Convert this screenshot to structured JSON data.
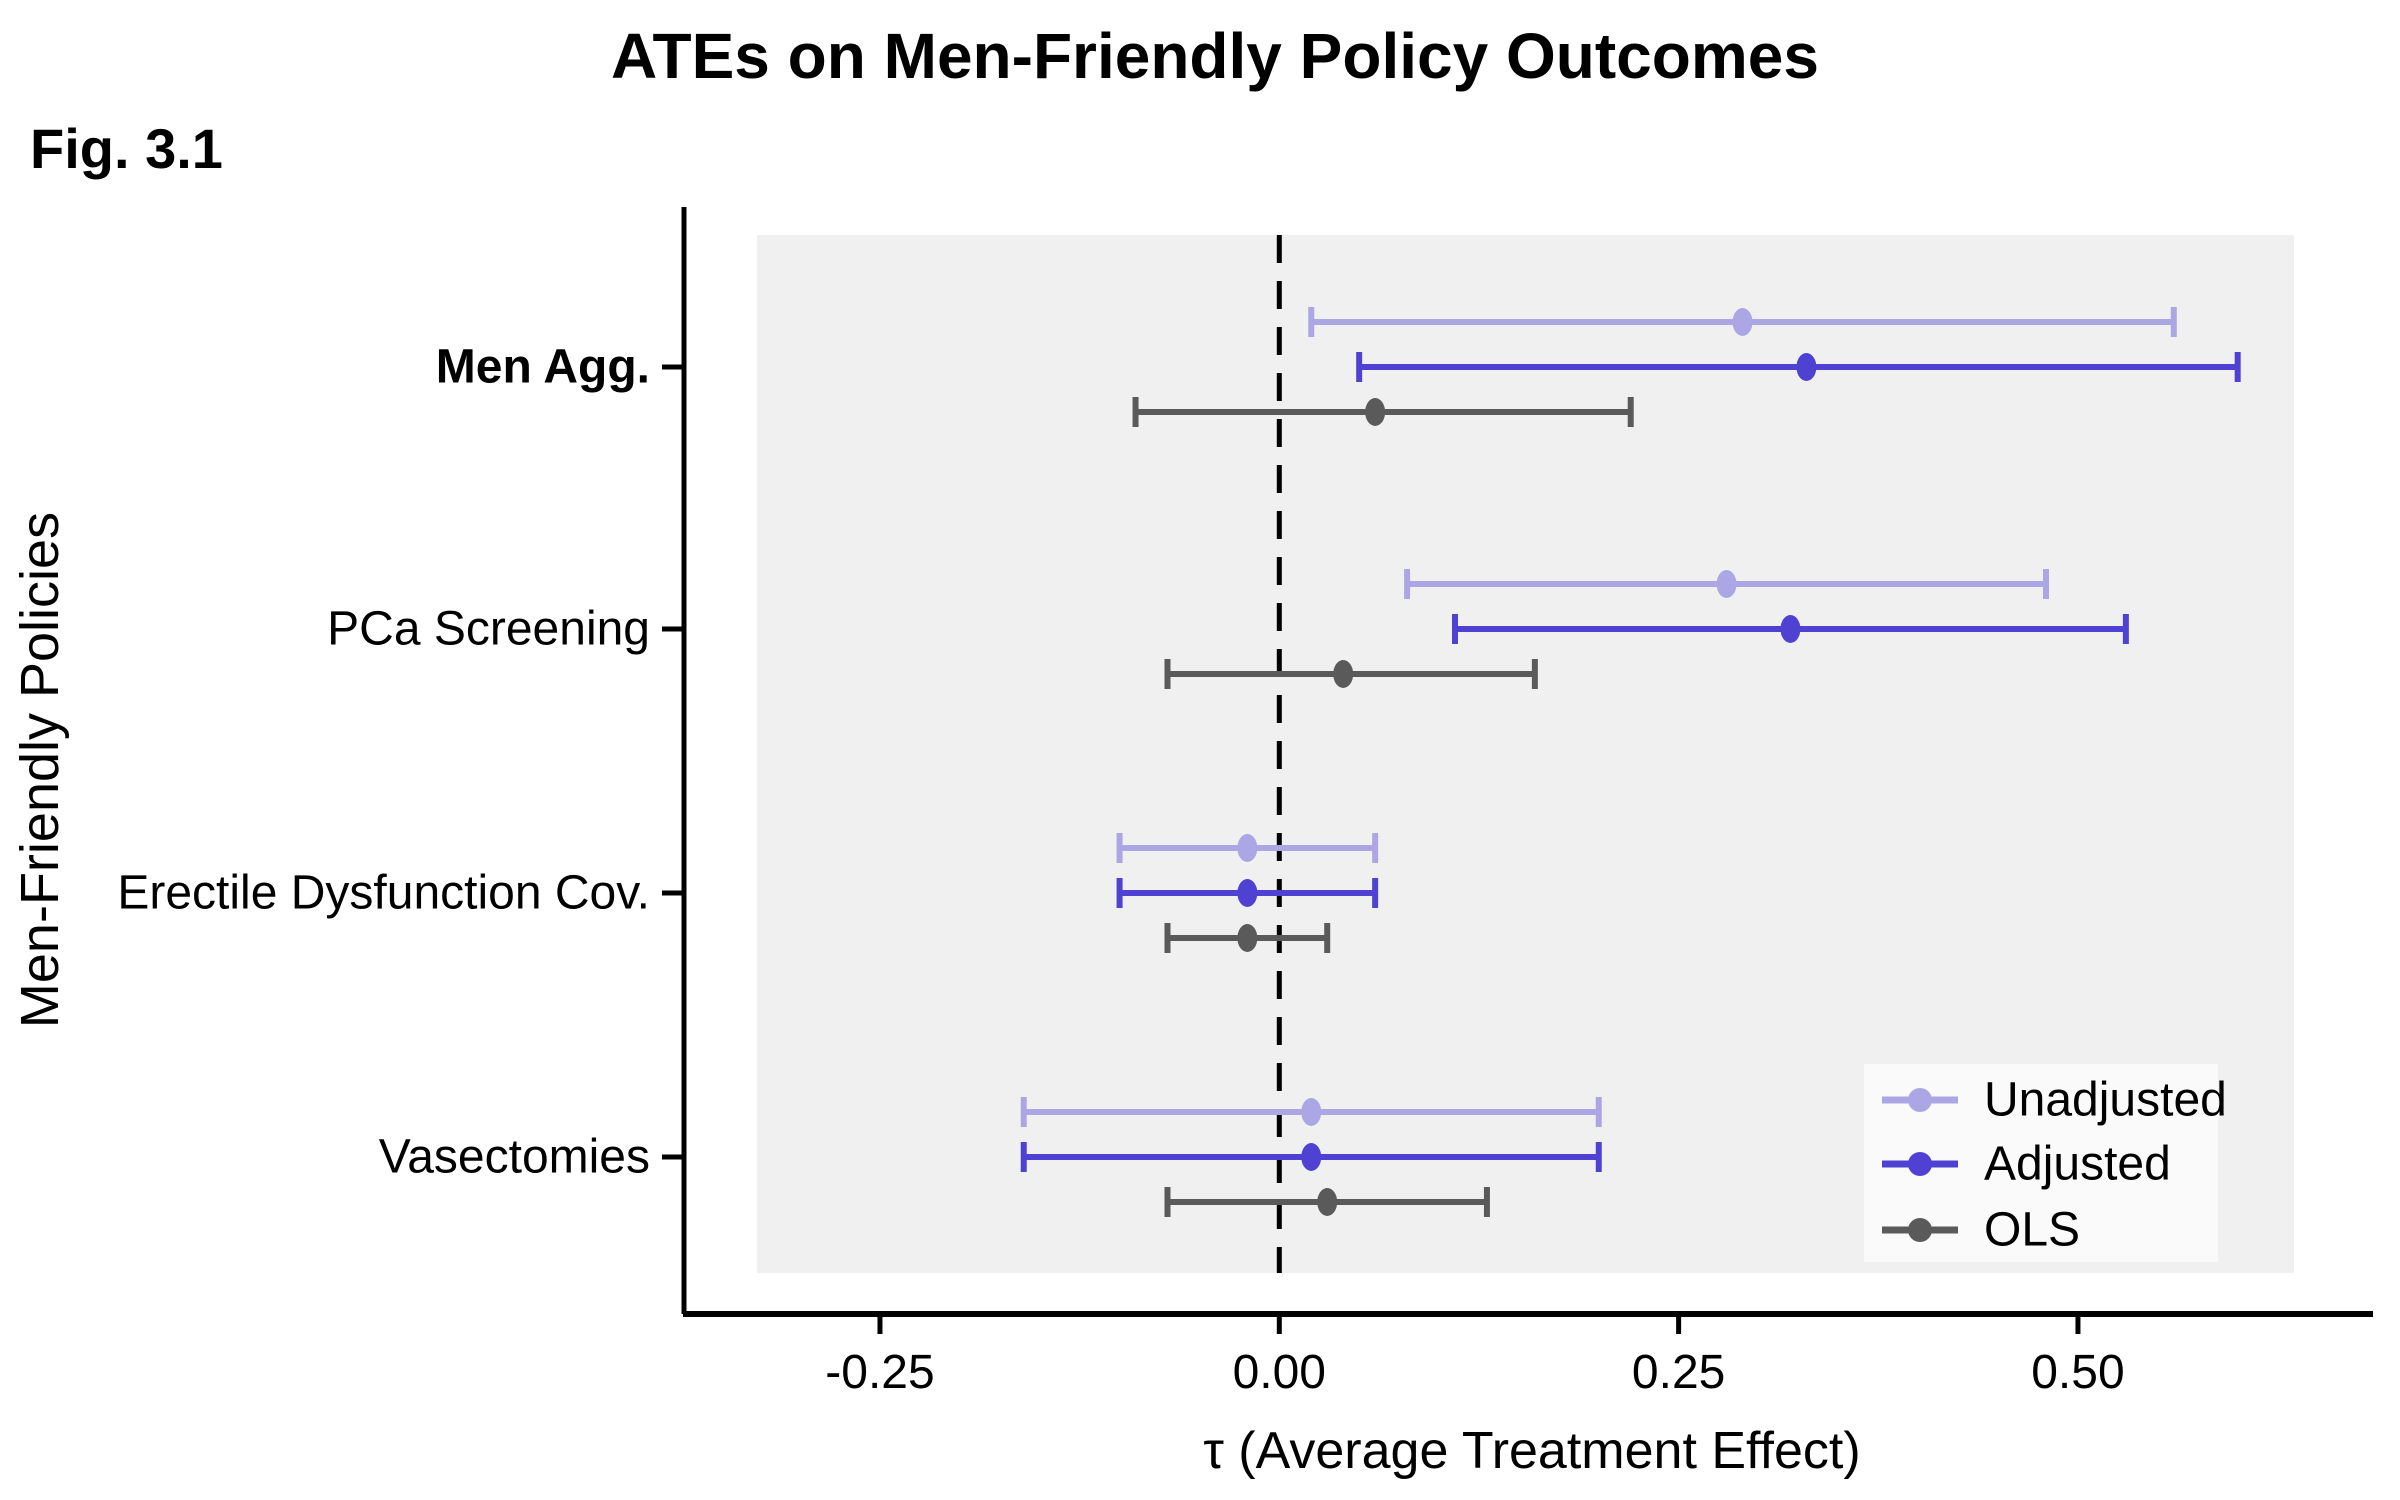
{
  "chart_data": {
    "type": "scatter",
    "subtype": "forest-errorbar",
    "title": "ATEs on Men-Friendly Policy Outcomes",
    "fig_label": "Fig. 3.1",
    "xlabel": "τ (Average Treatment Effect)",
    "ylabel": "Men-Friendly Policies",
    "x_ticks": [
      -0.25,
      0.0,
      0.25,
      0.5
    ],
    "x_tick_labels": [
      "-0.25",
      "0.00",
      "0.25",
      "0.50"
    ],
    "xlim": [
      -0.37,
      0.68
    ],
    "zero_line": 0.0,
    "grid": false,
    "legend_position": "bottom-right",
    "categories": [
      {
        "label": "Men Agg.",
        "bold": true
      },
      {
        "label": "PCa Screening",
        "bold": false
      },
      {
        "label": "Erectile Dysfunction Cov.",
        "bold": false
      },
      {
        "label": "Vasectomies",
        "bold": false
      }
    ],
    "series": [
      {
        "name": "Unadjusted",
        "color": "#ada6e4",
        "estimates": [
          0.29,
          0.28,
          -0.02,
          0.02
        ],
        "ci_low": [
          0.02,
          0.08,
          -0.1,
          -0.16
        ],
        "ci_high": [
          0.56,
          0.48,
          0.06,
          0.2
        ]
      },
      {
        "name": "Adjusted",
        "color": "#4f42d2",
        "estimates": [
          0.33,
          0.32,
          -0.02,
          0.02
        ],
        "ci_low": [
          0.05,
          0.11,
          -0.1,
          -0.16
        ],
        "ci_high": [
          0.6,
          0.53,
          0.06,
          0.2
        ]
      },
      {
        "name": "OLS",
        "color": "#5a5a5a",
        "estimates": [
          0.06,
          0.04,
          -0.02,
          0.03
        ],
        "ci_low": [
          -0.09,
          -0.07,
          -0.07,
          -0.07
        ],
        "ci_high": [
          0.22,
          0.16,
          0.03,
          0.13
        ]
      }
    ],
    "colors": {
      "panel_bg": "#f0f0f0",
      "legend_bg": "#fafafa",
      "axis": "#000000"
    }
  }
}
